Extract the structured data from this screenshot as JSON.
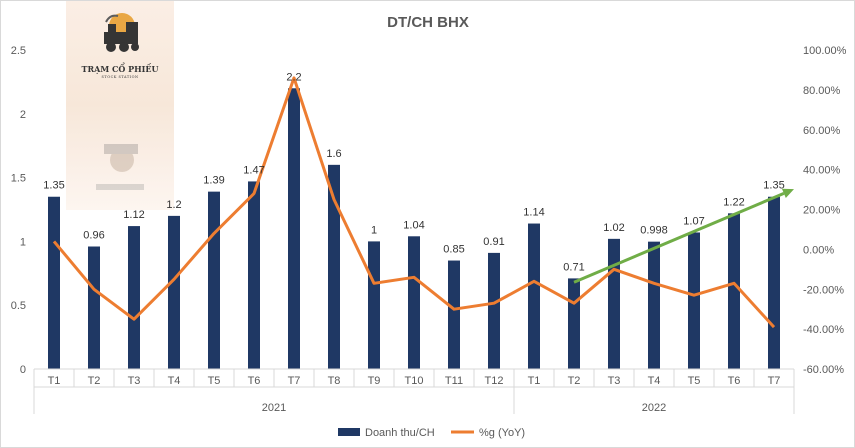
{
  "watermark": {
    "brand": "TRẠM CỔ PHIẾU",
    "tagline": "STOCK STATION"
  },
  "chart_data": {
    "type": "bar",
    "title": "DT/CH BHX",
    "categories": [
      "T1",
      "T2",
      "T3",
      "T4",
      "T5",
      "T6",
      "T7",
      "T8",
      "T9",
      "T10",
      "T11",
      "T12",
      "T1",
      "T2",
      "T3",
      "T4",
      "T5",
      "T6",
      "T7"
    ],
    "groups": [
      {
        "label": "2021",
        "start": 0,
        "count": 12
      },
      {
        "label": "2022",
        "start": 12,
        "count": 7
      }
    ],
    "series": [
      {
        "name": "Doanh thu/CH",
        "type": "bar",
        "axis": "left",
        "color": "#1f3864",
        "values": [
          1.35,
          0.96,
          1.12,
          1.2,
          1.39,
          1.47,
          2.2,
          1.6,
          1,
          1.04,
          0.85,
          0.91,
          1.14,
          0.71,
          1.02,
          0.998,
          1.07,
          1.22,
          1.35
        ],
        "labels": [
          "1.35",
          "0.96",
          "1.12",
          "1.2",
          "1.39",
          "1.47",
          "2.2",
          "1.6",
          "1",
          "1.04",
          "0.85",
          "0.91",
          "1.14",
          "0.71",
          "1.02",
          "0.998",
          "1.07",
          "1.22",
          "1.35"
        ]
      },
      {
        "name": "%g (YoY)",
        "type": "line",
        "axis": "right",
        "color": "#ed7d31",
        "values": [
          4,
          -20,
          -35,
          -15,
          8,
          28,
          86,
          25,
          -17,
          -14,
          -30,
          -27,
          -16,
          -27,
          -10,
          -17,
          -23,
          -17,
          -39
        ]
      }
    ],
    "trend_arrow": {
      "color": "#70ad47",
      "from_index": 13,
      "from_value": 0.68,
      "to_index": 18.5,
      "to_value": 1.41
    },
    "y_left": {
      "min": 0,
      "max": 2.5,
      "ticks": [
        "0",
        "0.5",
        "1",
        "1.5",
        "2",
        "2.5"
      ]
    },
    "y_right": {
      "min": -60,
      "max": 100,
      "ticks": [
        "-60.00%",
        "-40.00%",
        "-20.00%",
        "0.00%",
        "20.00%",
        "40.00%",
        "60.00%",
        "80.00%",
        "100.00%"
      ]
    },
    "legend": {
      "position": "bottom",
      "items": [
        "Doanh thu/CH",
        "%g (YoY)"
      ]
    }
  }
}
